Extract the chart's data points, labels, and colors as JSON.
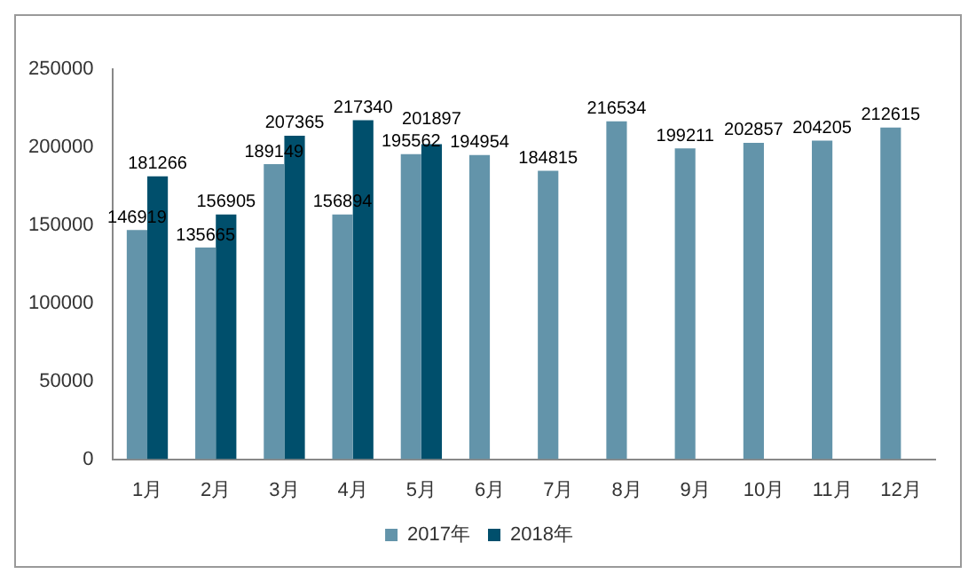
{
  "chart_data": {
    "type": "bar",
    "categories": [
      "1月",
      "2月",
      "3月",
      "4月",
      "5月",
      "6月",
      "7月",
      "8月",
      "9月",
      "10月",
      "11月",
      "12月"
    ],
    "series": [
      {
        "name": "2017年",
        "color": "#6394aa",
        "values": [
          146919,
          135665,
          189149,
          156894,
          195562,
          194954,
          184815,
          216534,
          199211,
          202857,
          204205,
          212615
        ]
      },
      {
        "name": "2018年",
        "color": "#004f6c",
        "values": [
          181266,
          156905,
          207365,
          217340,
          201897,
          null,
          null,
          null,
          null,
          null,
          null,
          null
        ]
      }
    ],
    "ylim": [
      0,
      250000
    ],
    "yticks": [
      0,
      50000,
      100000,
      150000,
      200000,
      250000
    ],
    "grid": false,
    "legend": "bottom",
    "data_labels": true
  }
}
